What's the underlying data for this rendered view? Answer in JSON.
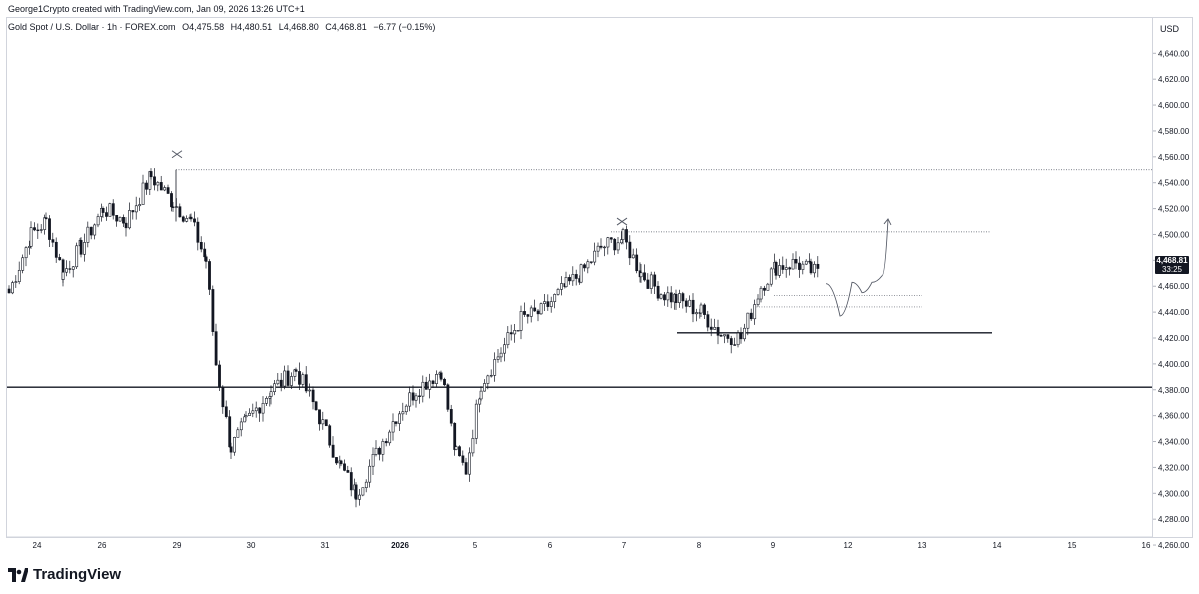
{
  "header": {
    "credit": "George1Crypto created with TradingView.com, Jan 09, 2026 13:26 UTC+1",
    "symbol": "Gold Spot / U.S. Dollar · 1h · FOREX.com",
    "open": "O4,475.58",
    "high": "H4,480.51",
    "low": "L4,468.80",
    "close": "C4,468.81",
    "change": "−6.77 (−0.15%)"
  },
  "axis": {
    "currency": "USD",
    "price_label": "4,468.81",
    "countdown": "33:25"
  },
  "brand": {
    "name": "TradingView"
  },
  "colors": {
    "candle": "#131722",
    "grid": "#d1d4dc",
    "background": "#ffffff",
    "accent": "#131722"
  },
  "chart_data": {
    "type": "candlestick",
    "title": "Gold Spot / U.S. Dollar · 1h · FOREX.com",
    "ylabel": "USD",
    "ylim": [
      4250,
      4650
    ],
    "y_ticks": [
      4260,
      4280,
      4300,
      4320,
      4340,
      4360,
      4380,
      4400,
      4420,
      4440,
      4460,
      4480,
      4500,
      4520,
      4540,
      4560,
      4580,
      4600,
      4620,
      4640
    ],
    "x_ticks": [
      "24",
      "26",
      "29",
      "30",
      "31",
      "2026",
      "5",
      "6",
      "7",
      "8",
      "9",
      "12",
      "13",
      "14",
      "15",
      "16"
    ],
    "last_price": 4468.81,
    "horizontal_lines": [
      {
        "price": 4550,
        "style": "dotted",
        "label": ""
      },
      {
        "price": 4502,
        "style": "dotted",
        "label": ""
      },
      {
        "price": 4453,
        "style": "dotted",
        "label": ""
      },
      {
        "price": 4444,
        "style": "dotted",
        "label": ""
      },
      {
        "price": 4424,
        "style": "solid",
        "label": ""
      },
      {
        "price": 4382,
        "style": "solid",
        "label": ""
      }
    ],
    "markers": [
      {
        "type": "cross",
        "x": "29",
        "price": 4562
      },
      {
        "type": "cross",
        "x": "7",
        "price": 4510
      }
    ],
    "path_points": [
      {
        "price": 4462
      },
      {
        "price": 4437
      },
      {
        "price": 4463
      },
      {
        "price": 4455
      },
      {
        "price": 4463
      },
      {
        "price": 4468
      },
      {
        "price": 4512
      }
    ],
    "anchor_closes": [
      {
        "price": 4455
      },
      {
        "price": 4500
      },
      {
        "price": 4510
      },
      {
        "price": 4470
      },
      {
        "price": 4490
      },
      {
        "price": 4520
      },
      {
        "price": 4510
      },
      {
        "price": 4545
      },
      {
        "price": 4525
      },
      {
        "price": 4510
      },
      {
        "price": 4480
      },
      {
        "price": 4400
      },
      {
        "price": 4335
      },
      {
        "price": 4355
      },
      {
        "price": 4380
      },
      {
        "price": 4395
      },
      {
        "price": 4365
      },
      {
        "price": 4320
      },
      {
        "price": 4300
      },
      {
        "price": 4330
      },
      {
        "price": 4360
      },
      {
        "price": 4380
      },
      {
        "price": 4395
      },
      {
        "price": 4330
      },
      {
        "price": 4318
      },
      {
        "price": 4385
      },
      {
        "price": 4410
      },
      {
        "price": 4435
      },
      {
        "price": 4440
      },
      {
        "price": 4460
      },
      {
        "price": 4470
      },
      {
        "price": 4490
      },
      {
        "price": 4497
      },
      {
        "price": 4470
      },
      {
        "price": 4455
      },
      {
        "price": 4450
      },
      {
        "price": 4440
      },
      {
        "price": 4423
      },
      {
        "price": 4420
      },
      {
        "price": 4460
      },
      {
        "price": 4475
      },
      {
        "price": 4478
      },
      {
        "price": 4472
      },
      {
        "price": 4469
      }
    ]
  }
}
